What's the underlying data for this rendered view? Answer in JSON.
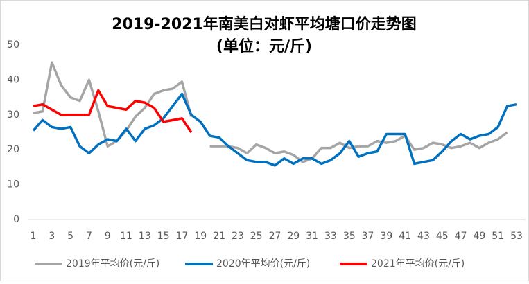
{
  "chart_data": {
    "type": "line",
    "title": "2019-2021年南美白对虾平均塘口价走势图",
    "subtitle": "(单位：元/斤)",
    "categories": [
      1,
      null,
      3,
      null,
      5,
      null,
      7,
      null,
      9,
      null,
      11,
      null,
      13,
      null,
      15,
      null,
      17,
      null,
      19,
      null,
      21,
      null,
      23,
      null,
      25,
      null,
      27,
      null,
      29,
      null,
      31,
      null,
      33,
      null,
      35,
      null,
      37,
      null,
      39,
      null,
      41,
      null,
      43,
      null,
      45,
      null,
      47,
      null,
      49,
      null,
      51,
      null,
      53
    ],
    "ylim": [
      0,
      50
    ],
    "yticks": [
      0,
      10,
      20,
      30,
      40,
      50
    ],
    "grid": false,
    "legend": "bottom",
    "series": [
      {
        "name": "2019年平均价(元/斤)",
        "color": "#a5a5a5",
        "values": [
          30.5,
          31,
          45,
          38.5,
          35,
          34,
          40,
          31,
          21,
          22.5,
          25.5,
          29.5,
          32,
          36,
          37,
          37.5,
          39.5,
          29.5,
          null,
          21,
          21,
          21,
          20.5,
          19,
          21.5,
          20.5,
          19,
          19.5,
          18.5,
          16.5,
          17.5,
          20.5,
          20.5,
          22,
          20.5,
          21,
          21,
          22.5,
          22,
          22.5,
          24,
          20,
          20.5,
          22,
          21.5,
          20.5,
          21,
          22,
          20.5,
          22,
          23,
          25,
          null
        ]
      },
      {
        "name": "2020年平均价(元/斤)",
        "color": "#0070c0",
        "values": [
          25.5,
          28.5,
          26.5,
          26,
          26.5,
          21,
          19,
          21.5,
          23,
          22.5,
          26,
          22.5,
          26,
          27,
          29,
          32.5,
          36,
          30,
          28,
          24,
          23.5,
          21,
          19,
          17,
          16.5,
          16.5,
          15.5,
          17.5,
          16,
          17.5,
          17.5,
          16,
          17,
          19,
          22.5,
          18,
          19,
          19.5,
          24.5,
          24.5,
          24.5,
          16,
          16.5,
          17,
          19.5,
          22.5,
          24.5,
          23,
          24,
          24.5,
          26.5,
          32.5,
          33
        ]
      },
      {
        "name": "2021年平均价(元/斤)",
        "color": "#ff0000",
        "values": [
          32.5,
          33,
          31.5,
          30,
          30,
          30,
          30,
          37,
          32.5,
          32,
          31.5,
          34,
          33.5,
          32,
          28,
          28.5,
          29,
          25,
          null,
          null,
          null,
          null,
          null,
          null,
          null,
          null,
          null,
          null,
          null,
          null,
          null,
          null,
          null,
          null,
          null,
          null,
          null,
          null,
          null,
          null,
          null,
          null,
          null,
          null,
          null,
          null,
          null,
          null,
          null,
          null,
          null,
          null,
          null
        ]
      }
    ]
  }
}
